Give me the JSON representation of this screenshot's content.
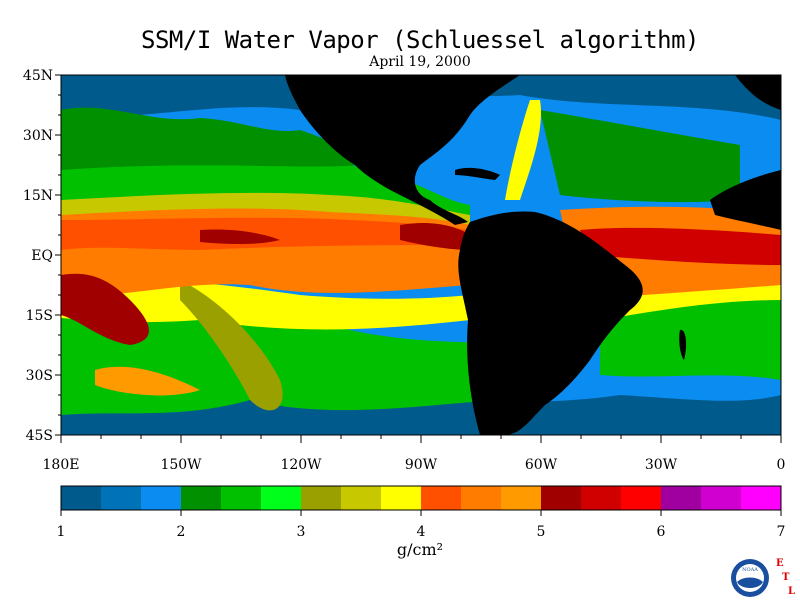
{
  "title": "SSM/I Water Vapor (Schluessel algorithm)",
  "subtitle": "April 19, 2000",
  "map": {
    "lat_labels": [
      "45N",
      "30N",
      "15N",
      "EQ",
      "15S",
      "30S",
      "45S"
    ],
    "lon_labels": [
      "180E",
      "150W",
      "120W",
      "90W",
      "60W",
      "30W",
      "0"
    ],
    "lat_values": [
      45,
      30,
      15,
      0,
      -15,
      -30,
      -45
    ],
    "lon_values": [
      -180,
      -150,
      -120,
      -90,
      -60,
      -30,
      0
    ],
    "lat_range": [
      -45,
      45
    ],
    "lon_range": [
      -180,
      0
    ],
    "land_color": "#000000",
    "ocean_base_color": "#0099ff"
  },
  "colorbar": {
    "colors": [
      "#005a8c",
      "#0072b8",
      "#0a8cf0",
      "#009000",
      "#00c000",
      "#00ff1a",
      "#9aa000",
      "#c8c800",
      "#ffff00",
      "#ff5000",
      "#ff7c00",
      "#ff9a00",
      "#a00000",
      "#d00000",
      "#ff0000",
      "#a000a0",
      "#d000d0",
      "#ff00ff"
    ],
    "tick_labels": [
      "1",
      "2",
      "3",
      "4",
      "5",
      "6",
      "7"
    ],
    "range": [
      1,
      7
    ],
    "units": "g/cm²"
  },
  "logo": {
    "agency_text": "NOAA",
    "lab_letters": [
      "E",
      "T",
      "L"
    ],
    "lab_color": "#e00000"
  }
}
